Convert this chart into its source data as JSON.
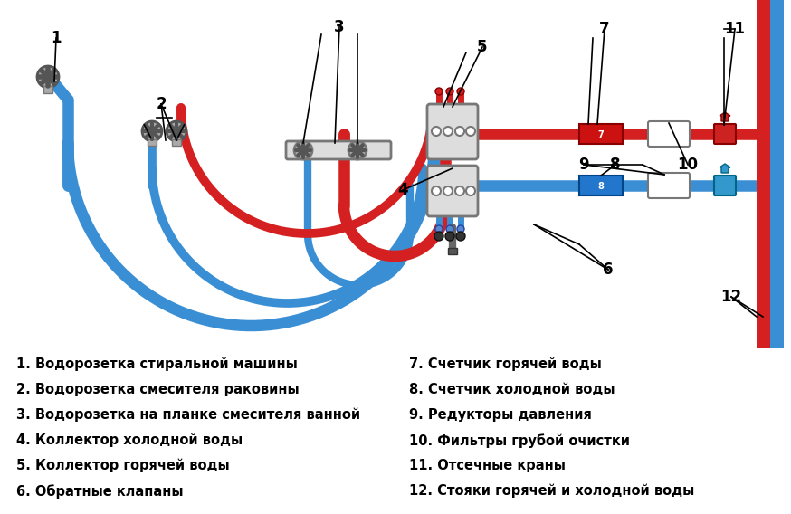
{
  "bg_color": "#ffffff",
  "hot_color": "#d42020",
  "cold_color": "#3a8fd4",
  "gray_color": "#aaaaaa",
  "dark_gray": "#777777",
  "light_gray": "#dddddd",
  "red_dark": "#aa0000",
  "blue_dark": "#0055aa",
  "legend_left": [
    "1. Водорозетка стиральной машины",
    "2. Водорозетка смесителя раковины",
    "3. Водорозетка на планке смесителя ванной",
    "4. Коллектор холодной воды",
    "5. Коллектор горячей воды",
    "6. Обратные клапаны"
  ],
  "legend_right": [
    "7. Счетчик горячей воды",
    "8. Счетчик холодной воды",
    "9. Редукторы давления",
    "10. Фильтры грубой очистки",
    "11. Отсечные краны",
    "12. Стояки горячей и холодной воды"
  ]
}
